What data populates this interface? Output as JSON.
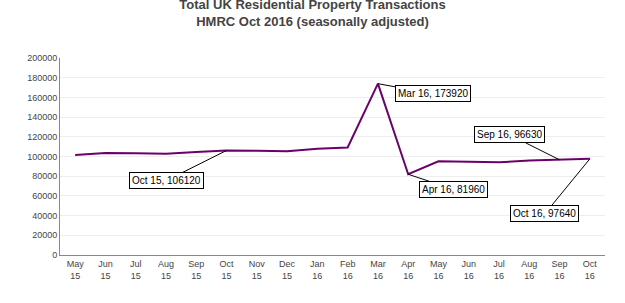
{
  "chart_data": {
    "type": "line",
    "title": "Total UK Residential Property Transactions\nHMRC Oct 2016 (seasonally adjusted)",
    "categories": [
      "May\n15",
      "Jun\n15",
      "Jul\n15",
      "Aug\n15",
      "Sep\n15",
      "Oct\n15",
      "Nov\n15",
      "Dec\n15",
      "Jan\n16",
      "Feb\n16",
      "Mar\n16",
      "Apr\n16",
      "May\n16",
      "Jun\n16",
      "Jul\n16",
      "Aug\n16",
      "Sep\n16",
      "Oct\n16"
    ],
    "values": [
      101620,
      103560,
      103200,
      102800,
      104500,
      106120,
      105800,
      105300,
      107800,
      109200,
      173920,
      81960,
      95200,
      94800,
      94100,
      96000,
      96630,
      97640
    ],
    "color": "#6B006B",
    "ylim": [
      0,
      200000
    ],
    "yticks": [
      0,
      20000,
      40000,
      60000,
      80000,
      100000,
      120000,
      140000,
      160000,
      180000,
      200000
    ],
    "grid": true,
    "annotations": [
      {
        "text": "Oct 15, 106120",
        "x": "Oct\n15",
        "y": 106120
      },
      {
        "text": "Mar 16, 173920",
        "x": "Mar\n16",
        "y": 173920
      },
      {
        "text": "Apr 16, 81960",
        "x": "Apr\n16",
        "y": 81960
      },
      {
        "text": "Sep 16, 96630",
        "x": "Sep\n16",
        "y": 96630
      },
      {
        "text": "Oct 16, 97640",
        "x": "Oct\n16",
        "y": 97640
      }
    ]
  }
}
